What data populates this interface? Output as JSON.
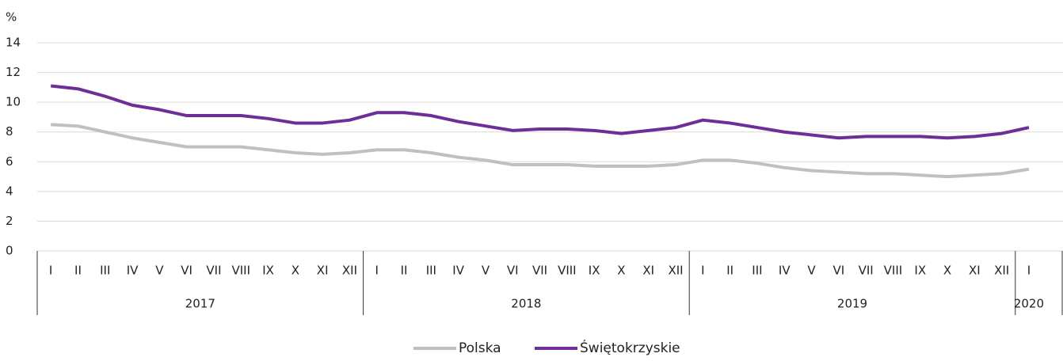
{
  "chart_data": {
    "type": "line",
    "y_unit": "%",
    "categories": [
      "I",
      "II",
      "III",
      "IV",
      "V",
      "VI",
      "VII",
      "VIII",
      "IX",
      "X",
      "XI",
      "XII",
      "I",
      "II",
      "III",
      "IV",
      "V",
      "VI",
      "VII",
      "VIII",
      "IX",
      "X",
      "XI",
      "XII",
      "I",
      "II",
      "III",
      "IV",
      "V",
      "VI",
      "VII",
      "VIII",
      "IX",
      "X",
      "XI",
      "XII",
      "I"
    ],
    "years": [
      "2017",
      "2018",
      "2019",
      "2020"
    ],
    "series": [
      {
        "name": "Polska",
        "color": "#c0c0c0",
        "values": [
          8.5,
          8.4,
          8.0,
          7.6,
          7.3,
          7.0,
          7.0,
          7.0,
          6.8,
          6.6,
          6.5,
          6.6,
          6.8,
          6.8,
          6.6,
          6.3,
          6.1,
          5.8,
          5.8,
          5.8,
          5.7,
          5.7,
          5.7,
          5.8,
          6.1,
          6.1,
          5.9,
          5.6,
          5.4,
          5.3,
          5.2,
          5.2,
          5.1,
          5.0,
          5.1,
          5.2,
          5.5
        ]
      },
      {
        "name": "Świętokrzyskie",
        "color": "#6d2e98",
        "values": [
          11.1,
          10.9,
          10.4,
          9.8,
          9.5,
          9.1,
          9.1,
          9.1,
          8.9,
          8.6,
          8.6,
          8.8,
          9.3,
          9.3,
          9.1,
          8.7,
          8.4,
          8.1,
          8.2,
          8.2,
          8.1,
          7.9,
          8.1,
          8.3,
          8.8,
          8.6,
          8.3,
          8.0,
          7.8,
          7.6,
          7.7,
          7.7,
          7.7,
          7.6,
          7.7,
          7.9,
          8.3
        ]
      }
    ],
    "ylim": [
      0,
      14
    ],
    "yticks": [
      0,
      2,
      4,
      6,
      8,
      10,
      12,
      14
    ],
    "grid": true,
    "legend": "bottom"
  }
}
